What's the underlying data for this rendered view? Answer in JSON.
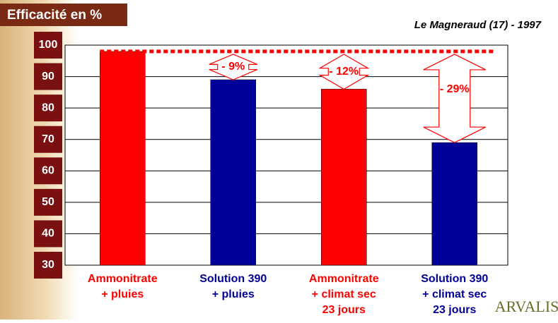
{
  "chart_data": {
    "type": "bar",
    "title": "Efficacité en %",
    "subtitle": "Le Magneraud (17) - 1997",
    "categories": [
      "Ammonitrate\n+ pluies",
      "Solution 390\n+ pluies",
      "Ammonitrate\n+ climat sec\n23 jours",
      "Solution 390\n+ climat sec\n23 jours"
    ],
    "values": [
      98,
      89,
      86,
      69
    ],
    "colors": [
      "#ff0000",
      "#000099",
      "#ff0000",
      "#000099"
    ],
    "ylim": [
      30,
      100
    ],
    "yticks": [
      30,
      40,
      50,
      60,
      70,
      80,
      90,
      100
    ],
    "grid": true,
    "reference_line": 98,
    "annotations": [
      "- 9%",
      "- 12%",
      "- 29%"
    ],
    "logo": "ARVALIS"
  }
}
